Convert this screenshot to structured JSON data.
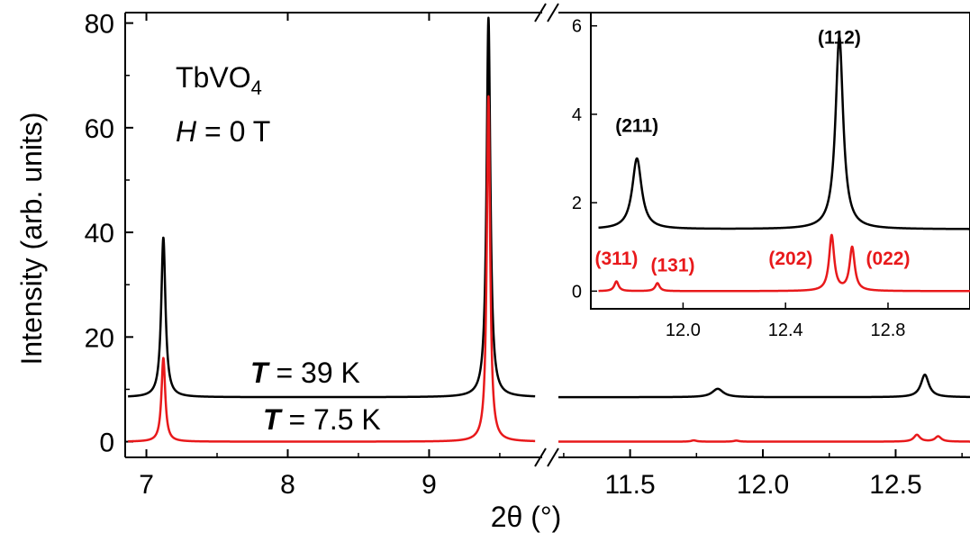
{
  "colors": {
    "black": "#000000",
    "red": "#e8191b"
  },
  "chart_data": [
    {
      "type": "line",
      "id": "main",
      "xlabel": "2θ (°)",
      "ylabel": "Intensity (arb. units)",
      "broken_x_axis": true,
      "x_segments": [
        [
          6.85,
          9.8
        ],
        [
          11.23,
          12.78
        ]
      ],
      "ylim": [
        -3,
        82
      ],
      "yticks": [
        0,
        20,
        40,
        60,
        80
      ],
      "xticks_left": [
        7,
        8,
        9
      ],
      "xticks_right": [
        11.5,
        12.0,
        12.5
      ],
      "xtick_labels_left": [
        "7",
        "8",
        "9"
      ],
      "xtick_labels_right": [
        "11.5",
        "12.0",
        "12.5"
      ],
      "ytick_labels": [
        "0",
        "20",
        "40",
        "60",
        "80"
      ],
      "annotations": {
        "compound": "TbVO",
        "compound_sub": "4",
        "field_var": "H",
        "field_rest": " = 0 T"
      },
      "series": [
        {
          "name": "T = 39 K",
          "label_var": "T",
          "label_rest": " = 39 K",
          "color": "#000000",
          "baseline": 8.5,
          "peaks": [
            {
              "x": 7.12,
              "height": 30.5,
              "width": 0.018
            },
            {
              "x": 9.42,
              "height": 72.5,
              "width": 0.016
            },
            {
              "x": 11.83,
              "height": 1.6,
              "width": 0.025
            },
            {
              "x": 12.61,
              "height": 4.3,
              "width": 0.018
            }
          ]
        },
        {
          "name": "T = 7.5 K",
          "label_var": "T",
          "label_rest": " = 7.5 K",
          "color": "#e8191b",
          "baseline": 0,
          "peaks": [
            {
              "x": 7.12,
              "height": 16,
              "width": 0.016
            },
            {
              "x": 9.42,
              "height": 66,
              "width": 0.014
            },
            {
              "x": 11.74,
              "height": 0.25,
              "width": 0.012
            },
            {
              "x": 11.9,
              "height": 0.2,
              "width": 0.012
            },
            {
              "x": 12.58,
              "height": 1.3,
              "width": 0.014
            },
            {
              "x": 12.66,
              "height": 1.0,
              "width": 0.014
            }
          ]
        }
      ]
    },
    {
      "type": "line",
      "id": "inset",
      "xlim": [
        11.64,
        13.12
      ],
      "ylim": [
        -0.4,
        6.3
      ],
      "yticks": [
        0,
        2,
        4,
        6
      ],
      "ytick_labels": [
        "0",
        "2",
        "4",
        "6"
      ],
      "xticks": [
        12.0,
        12.4,
        12.8
      ],
      "xtick_labels": [
        "12.0",
        "12.4",
        "12.8"
      ],
      "series": [
        {
          "name": "T = 39 K",
          "color": "#000000",
          "baseline": 1.4,
          "peaks": [
            {
              "x": 11.82,
              "height": 1.6,
              "width": 0.022
            },
            {
              "x": 12.61,
              "height": 4.35,
              "width": 0.018
            }
          ]
        },
        {
          "name": "T = 7.5 K",
          "color": "#e8191b",
          "baseline": 0,
          "peaks": [
            {
              "x": 11.74,
              "height": 0.22,
              "width": 0.01
            },
            {
              "x": 11.9,
              "height": 0.18,
              "width": 0.01
            },
            {
              "x": 12.58,
              "height": 1.25,
              "width": 0.012
            },
            {
              "x": 12.66,
              "height": 0.98,
              "width": 0.012
            }
          ]
        }
      ],
      "peak_labels": [
        {
          "text": "(211)",
          "x": 11.82,
          "y": 3.6,
          "color": "#000000"
        },
        {
          "text": "(112)",
          "x": 12.61,
          "y": 5.6,
          "color": "#000000"
        },
        {
          "text": "(311)",
          "x": 11.74,
          "y": 0.6,
          "color": "#e8191b"
        },
        {
          "text": "(131)",
          "x": 11.96,
          "y": 0.45,
          "color": "#e8191b"
        },
        {
          "text": "(202)",
          "x": 12.42,
          "y": 0.6,
          "color": "#e8191b"
        },
        {
          "text": "(022)",
          "x": 12.8,
          "y": 0.6,
          "color": "#e8191b"
        }
      ]
    }
  ]
}
